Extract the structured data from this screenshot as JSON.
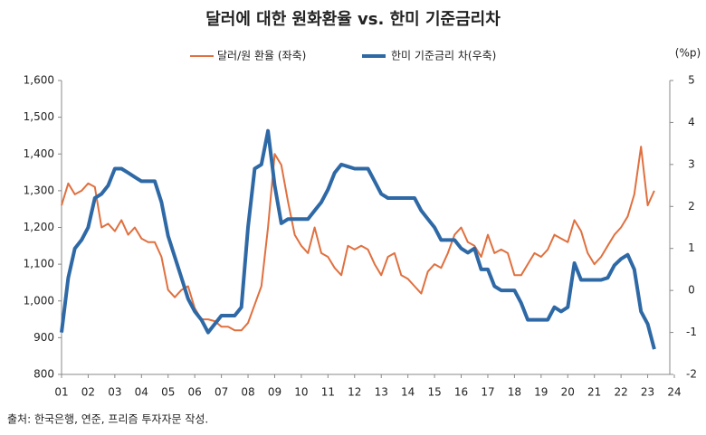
{
  "chart_data": {
    "type": "line",
    "title": "달러에 대한 원화환율 vs. 한미 기준금리차",
    "y2_unit": "(%p)",
    "source": "출처: 한국은행, 연준, 프리즘 투자자문 작성.",
    "legend": "top",
    "x": [
      1,
      1.25,
      1.5,
      1.75,
      2,
      2.25,
      2.5,
      2.75,
      3,
      3.25,
      3.5,
      3.75,
      4,
      4.25,
      4.5,
      4.75,
      5,
      5.25,
      5.5,
      5.75,
      6,
      6.25,
      6.5,
      6.75,
      7,
      7.25,
      7.5,
      7.75,
      8,
      8.25,
      8.5,
      8.75,
      9,
      9.25,
      9.5,
      9.75,
      10,
      10.25,
      10.5,
      10.75,
      11,
      11.25,
      11.5,
      11.75,
      12,
      12.25,
      12.5,
      12.75,
      13,
      13.25,
      13.5,
      13.75,
      14,
      14.25,
      14.5,
      14.75,
      15,
      15.25,
      15.5,
      15.75,
      16,
      16.25,
      16.5,
      16.75,
      17,
      17.25,
      17.5,
      17.75,
      18,
      18.25,
      18.5,
      18.75,
      19,
      19.25,
      19.5,
      19.75,
      20,
      20.25,
      20.5,
      20.75,
      21,
      21.25,
      21.5,
      21.75,
      22,
      22.25,
      22.5,
      22.75,
      23,
      23.25
    ],
    "series": [
      {
        "name": "달러/원 환율 (좌축)",
        "color": "#e0703f",
        "width": 2,
        "axis": "y",
        "values": [
          1260,
          1320,
          1290,
          1300,
          1320,
          1310,
          1200,
          1210,
          1190,
          1220,
          1180,
          1200,
          1170,
          1160,
          1160,
          1120,
          1030,
          1010,
          1030,
          1040,
          980,
          950,
          950,
          945,
          930,
          930,
          920,
          920,
          940,
          990,
          1040,
          1200,
          1400,
          1370,
          1270,
          1180,
          1150,
          1130,
          1200,
          1130,
          1120,
          1090,
          1070,
          1150,
          1140,
          1150,
          1140,
          1100,
          1070,
          1120,
          1130,
          1070,
          1060,
          1040,
          1020,
          1080,
          1100,
          1090,
          1130,
          1180,
          1200,
          1160,
          1150,
          1120,
          1180,
          1130,
          1140,
          1130,
          1070,
          1070,
          1100,
          1130,
          1120,
          1140,
          1180,
          1170,
          1160,
          1220,
          1190,
          1130,
          1100,
          1120,
          1150,
          1180,
          1200,
          1230,
          1290,
          1420,
          1260,
          1300
        ]
      },
      {
        "name": "한미 기준금리 차(우축)",
        "color": "#2e69a6",
        "width": 4,
        "axis": "y2",
        "values": [
          -1.0,
          0.3,
          1.0,
          1.2,
          1.5,
          2.2,
          2.3,
          2.5,
          2.9,
          2.9,
          2.8,
          2.7,
          2.6,
          2.6,
          2.6,
          2.1,
          1.3,
          0.8,
          0.3,
          -0.2,
          -0.5,
          -0.7,
          -1.0,
          -0.8,
          -0.6,
          -0.6,
          -0.6,
          -0.4,
          1.5,
          2.9,
          3.0,
          3.8,
          2.5,
          1.6,
          1.7,
          1.7,
          1.7,
          1.7,
          1.9,
          2.1,
          2.4,
          2.8,
          3.0,
          2.95,
          2.9,
          2.9,
          2.9,
          2.6,
          2.3,
          2.2,
          2.2,
          2.2,
          2.2,
          2.2,
          1.9,
          1.7,
          1.5,
          1.2,
          1.2,
          1.2,
          1.0,
          0.9,
          1.0,
          0.5,
          0.5,
          0.1,
          0,
          0,
          0,
          -0.3,
          -0.7,
          -0.7,
          -0.7,
          -0.7,
          -0.4,
          -0.5,
          -0.4,
          0.65,
          0.25,
          0.25,
          0.25,
          0.25,
          0.3,
          0.6,
          0.75,
          0.85,
          0.5,
          -0.5,
          -0.8,
          -1.4
        ]
      }
    ],
    "xlim": [
      1,
      24
    ],
    "xticks": [
      {
        "value": 1,
        "label": "01"
      },
      {
        "value": 2,
        "label": "02"
      },
      {
        "value": 3,
        "label": "03"
      },
      {
        "value": 4,
        "label": "04"
      },
      {
        "value": 5,
        "label": "05"
      },
      {
        "value": 6,
        "label": "06"
      },
      {
        "value": 7,
        "label": "07"
      },
      {
        "value": 8,
        "label": "08"
      },
      {
        "value": 9,
        "label": "09"
      },
      10,
      11,
      12,
      13,
      14,
      15,
      16,
      17,
      18,
      19,
      20,
      21,
      22,
      23,
      24
    ],
    "ylim": [
      800,
      1600
    ],
    "yticks": [
      800,
      900,
      {
        "value": 1000,
        "label": "1,000"
      },
      {
        "value": 1100,
        "label": "1,100"
      },
      {
        "value": 1200,
        "label": "1,200"
      },
      {
        "value": 1300,
        "label": "1,300"
      },
      {
        "value": 1400,
        "label": "1,400"
      },
      {
        "value": 1500,
        "label": "1,500"
      },
      {
        "value": 1600,
        "label": "1,600"
      }
    ],
    "y2lim": [
      -2,
      5
    ],
    "y2ticks": [
      -2,
      -1,
      0,
      1,
      2,
      3,
      4,
      5
    ]
  }
}
